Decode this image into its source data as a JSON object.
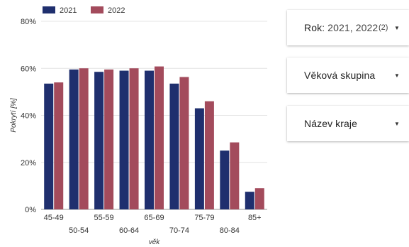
{
  "chart_data": {
    "type": "bar",
    "categories": [
      "45-49",
      "50-54",
      "55-59",
      "60-64",
      "65-69",
      "70-74",
      "75-79",
      "80-84",
      "85+"
    ],
    "series": [
      {
        "name": "2021",
        "values": [
          53.5,
          59.5,
          58.5,
          59.0,
          59.0,
          53.5,
          43.0,
          25.0,
          7.5
        ]
      },
      {
        "name": "2022",
        "values": [
          54.0,
          60.0,
          59.5,
          60.0,
          60.8,
          56.3,
          46.0,
          28.5,
          9.0
        ]
      }
    ],
    "ylim": [
      0,
      80
    ],
    "yticks": [
      0,
      20,
      40,
      60,
      80
    ],
    "ytick_labels": [
      "0%",
      "20%",
      "40%",
      "60%",
      "80%"
    ],
    "ylabel": "Pokrytí [%]",
    "xlabel": "věk",
    "colors": [
      "#1f2f6e",
      "#a34b5c"
    ],
    "legend": "top-left",
    "grid": true
  },
  "filters": {
    "rok": {
      "name": "Rok",
      "value": ": 2021, 2022",
      "count": "(2)"
    },
    "vek": {
      "label": "Věková skupina"
    },
    "kraj": {
      "label": "Název kraje"
    }
  },
  "icons": {
    "caret": "▼"
  }
}
